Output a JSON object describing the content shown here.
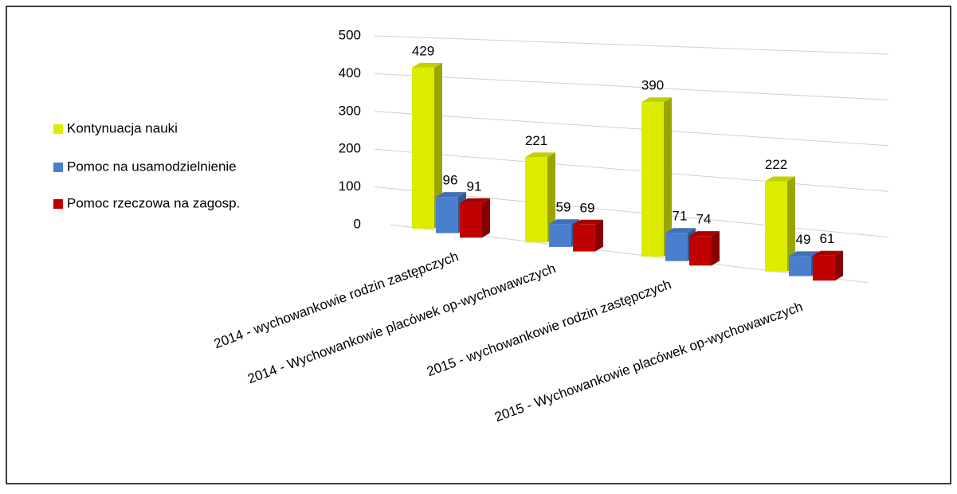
{
  "chart_data": {
    "type": "bar3d",
    "categories": [
      "2014 - wychowankowie rodzin zastępczych",
      "2014 - Wychowankowie placówek op-wychowawczych",
      "2015 - wychowankowie rodzin zastępczych",
      "2015 - Wychowankowie placówek op-wychowawczych"
    ],
    "series": [
      {
        "name": "Kontynuacja nauki",
        "color": "#dcec00",
        "values": [
          429,
          221,
          390,
          222
        ]
      },
      {
        "name": "Pomoc na usamodzielnienie",
        "color": "#4a7fcf",
        "values": [
          96,
          59,
          71,
          49
        ]
      },
      {
        "name": "Pomoc rzeczowa na zagosp.",
        "color": "#c00000",
        "values": [
          91,
          69,
          74,
          61
        ]
      }
    ],
    "ylim": [
      0,
      500
    ],
    "yticks": [
      0,
      100,
      200,
      300,
      400,
      500
    ],
    "grid": true,
    "legend": "left"
  }
}
